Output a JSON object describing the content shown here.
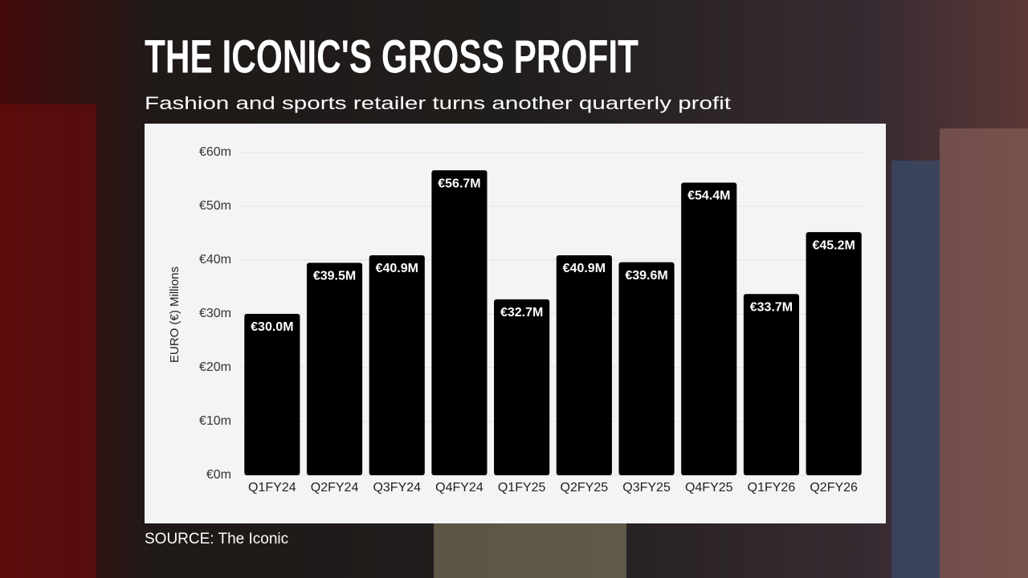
{
  "chart_data": {
    "type": "bar",
    "title": "THE ICONIC'S GROSS PROFIT",
    "subtitle": "Fashion and sports retailer turns another quarterly profit",
    "y_label": "EURO (€) Millions",
    "source": "SOURCE: The Iconic",
    "categories": [
      "Q1FY24",
      "Q2FY24",
      "Q3FY24",
      "Q4FY24",
      "Q1FY25",
      "Q2FY25",
      "Q3FY25",
      "Q4FY25",
      "Q1FY26",
      "Q2FY26"
    ],
    "values": [
      30.0,
      39.5,
      40.9,
      56.7,
      32.7,
      40.9,
      39.6,
      54.4,
      33.7,
      45.2
    ],
    "value_labels": [
      "€30.0M",
      "€39.5M",
      "€40.9M",
      "€56.7M",
      "€32.7M",
      "€40.9M",
      "€39.6M",
      "€54.4M",
      "€33.7M",
      "€45.2M"
    ],
    "color": "#000000",
    "ylim": [
      0,
      60
    ],
    "yticks": [
      {
        "value": 0,
        "label": "€0m"
      },
      {
        "value": 10,
        "label": "€10m"
      },
      {
        "value": 20,
        "label": "€20m"
      },
      {
        "value": 30,
        "label": "€30m"
      },
      {
        "value": 40,
        "label": "€40m"
      },
      {
        "value": 50,
        "label": "€50m"
      },
      {
        "value": 60,
        "label": "€60m"
      }
    ],
    "grid": true
  }
}
